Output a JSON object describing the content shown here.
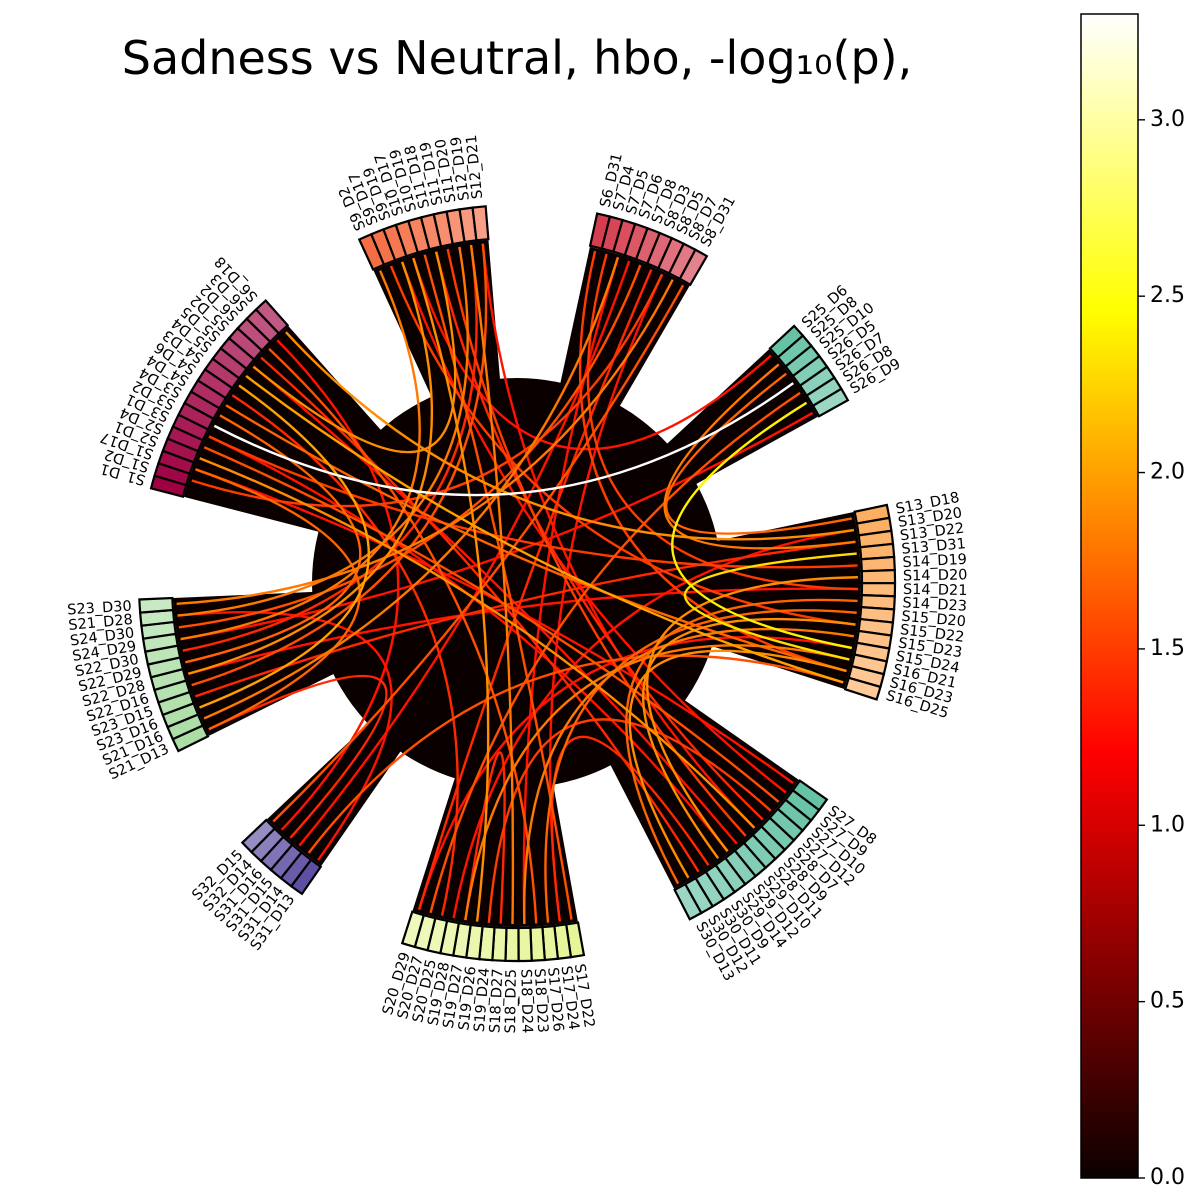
{
  "title": "Sadness vs Neutral, hbo, -log₁₀(p),",
  "colorbar": {
    "colormap": "hot",
    "range": [
      0.0,
      3.3
    ],
    "ticks": [
      "0.0",
      "0.5",
      "1.0",
      "1.5",
      "2.0",
      "2.5",
      "3.0"
    ],
    "tick_values": [
      0.0,
      0.5,
      1.0,
      1.5,
      2.0,
      2.5,
      3.0
    ]
  },
  "chart_data": {
    "type": "chord",
    "metric": "-log10(p)",
    "groups": [
      {
        "name": "group-1",
        "color": "#9e0142",
        "nodes": [
          "S1_D1",
          "S1_D2",
          "S1_D17",
          "S2_D1",
          "S2_D4",
          "S3_D1",
          "S3_D2",
          "S3_D4",
          "S4_D4",
          "S4_D6",
          "S4_D3",
          "S5_D4",
          "S5_D5",
          "S5_D2",
          "S6_D2",
          "S6_D3",
          "S6_D18"
        ]
      },
      {
        "name": "group-2",
        "color": "#f46d43",
        "nodes": [
          "S9_D2",
          "S9_D17",
          "S9_D19",
          "S10_D17",
          "S10_D19",
          "S11_D18",
          "S11_D19",
          "S11_D20",
          "S12_D19",
          "S12_D21"
        ]
      },
      {
        "name": "group-3",
        "color": "#d53e4f",
        "nodes": [
          "S6_D31",
          "S7_D4",
          "S7_D5",
          "S7_D6",
          "S7_D8",
          "S8_D3",
          "S8_D5",
          "S8_D7",
          "S8_D31"
        ]
      },
      {
        "name": "group-4",
        "color": "#66c2a5",
        "nodes": [
          "S25_D6",
          "S25_D8",
          "S25_D10",
          "S26_D5",
          "S26_D7",
          "S26_D8",
          "S26_D9"
        ]
      },
      {
        "name": "group-5",
        "color": "#fdae61",
        "nodes": [
          "S13_D18",
          "S13_D20",
          "S13_D22",
          "S13_D31",
          "S14_D19",
          "S14_D20",
          "S14_D21",
          "S14_D23",
          "S15_D20",
          "S15_D22",
          "S15_D23",
          "S15_D24",
          "S16_D21",
          "S16_D23",
          "S16_D25"
        ]
      },
      {
        "name": "group-6",
        "color": "#66c2a5",
        "nodes": [
          "S27_D8",
          "S27_D9",
          "S27_D10",
          "S27_D12",
          "S28_D7",
          "S28_D9",
          "S28_D11",
          "S29_D10",
          "S29_D12",
          "S29_D14",
          "S30_D9",
          "S30_D11",
          "S30_D12",
          "S30_D13"
        ]
      },
      {
        "name": "group-7",
        "color": "#e6f598",
        "nodes": [
          "S17_D22",
          "S17_D24",
          "S17_D26",
          "S18_D23",
          "S18_D24",
          "S18_D25",
          "S18_D27",
          "S19_D24",
          "S19_D26",
          "S19_D27",
          "S19_D28",
          "S20_D25",
          "S20_D27",
          "S20_D29"
        ]
      },
      {
        "name": "group-8",
        "color": "#5e4fa2",
        "nodes": [
          "S31_D13",
          "S31_D14",
          "S31_D15",
          "S31_D16",
          "S32_D14",
          "S32_D15"
        ]
      },
      {
        "name": "group-9",
        "color": "#abdda4",
        "nodes": [
          "S21_D13",
          "S21_D16",
          "S23_D16",
          "S23_D15",
          "S22_D16",
          "S22_D28",
          "S22_D29",
          "S22_D30",
          "S24_D29",
          "S24_D30",
          "S21_D28",
          "S23_D30"
        ]
      }
    ],
    "connections": [
      [
        "S3_D2",
        "S26_D5",
        3.3
      ],
      [
        "S26_D8",
        "S15_D24",
        2.4
      ],
      [
        "S13_D31",
        "S16_D21",
        2.3
      ],
      [
        "S5_D4",
        "S16_D25",
        2.0
      ],
      [
        "S4_D3",
        "S23_D16",
        2.0
      ],
      [
        "S5_D5",
        "S11_D18",
        1.9
      ],
      [
        "S9_D19",
        "S22_D28",
        1.9
      ],
      [
        "S10_D17",
        "S19_D26",
        1.9
      ],
      [
        "S6_D18",
        "S13_D20",
        1.9
      ],
      [
        "S2_D1",
        "S28_D9",
        1.9
      ],
      [
        "S14_D20",
        "S29_D12",
        1.9
      ],
      [
        "S15_D22",
        "S29_D14",
        1.9
      ],
      [
        "S16_D23",
        "S30_D12",
        1.9
      ],
      [
        "S16_D21",
        "S19_D27",
        1.8
      ],
      [
        "S15_D23",
        "S18_D24",
        1.8
      ],
      [
        "S7_D5",
        "S21_D16",
        1.8
      ],
      [
        "S8_D7",
        "S23_D30",
        1.8
      ],
      [
        "S25_D8",
        "S13_D22",
        1.8
      ],
      [
        "S24_D29",
        "S9_D2",
        1.8
      ],
      [
        "S21_D28",
        "S11_D20",
        1.8
      ],
      [
        "S12_D19",
        "S18_D25",
        1.8
      ],
      [
        "S1_D17",
        "S21_D13",
        1.7
      ],
      [
        "S3_D4",
        "S22_D29",
        1.7
      ],
      [
        "S4_D4",
        "S16_D23",
        1.7
      ],
      [
        "S14_D23",
        "S30_D13",
        1.7
      ],
      [
        "S15_D20",
        "S17_D26",
        1.7
      ],
      [
        "S13_D18",
        "S25_D10",
        1.7
      ],
      [
        "S16_D25",
        "S31_D14",
        1.6
      ],
      [
        "S26_D7",
        "S20_D27",
        1.6
      ],
      [
        "S8_D31",
        "S32_D15",
        1.6
      ],
      [
        "S6_D2",
        "S18_D23",
        1.6
      ],
      [
        "S7_D8",
        "S24_D30",
        1.6
      ],
      [
        "S10_D19",
        "S17_D22",
        1.6
      ],
      [
        "S12_D21",
        "S22_D16",
        1.6
      ],
      [
        "S2_D4",
        "S27_D10",
        1.6
      ],
      [
        "S3_D1",
        "S14_D19",
        1.5
      ],
      [
        "S1_D2",
        "S8_D5",
        1.5
      ],
      [
        "S11_D19",
        "S28_D11",
        1.5
      ],
      [
        "S9_D17",
        "S15_D22",
        1.5
      ],
      [
        "S6_D31",
        "S16_D23",
        1.5
      ],
      [
        "S7_D4",
        "S14_D21",
        1.5
      ],
      [
        "S19_D24",
        "S27_D12",
        1.5
      ],
      [
        "S18_D27",
        "S19_D27",
        1.4
      ],
      [
        "S30_D9",
        "S17_D24",
        1.4
      ],
      [
        "S5_D2",
        "S30_D11",
        1.4
      ],
      [
        "S4_D6",
        "S20_D25",
        1.4
      ],
      [
        "S21_D13",
        "S31_D16",
        1.4
      ],
      [
        "S23_D15",
        "S13_D22",
        1.4
      ],
      [
        "S22_D30",
        "S12_D19",
        1.4
      ],
      [
        "S20_D29",
        "S8_D3",
        1.4
      ],
      [
        "S28_D7",
        "S11_D18",
        1.4
      ],
      [
        "S29_D10",
        "S5_D5",
        1.3
      ],
      [
        "S27_D9",
        "S9_D19",
        1.3
      ],
      [
        "S25_D6",
        "S10_D17",
        1.3
      ],
      [
        "S26_D9",
        "S24_D29",
        1.3
      ],
      [
        "S31_D15",
        "S7_D6",
        1.3
      ],
      [
        "S32_D14",
        "S6_D3",
        1.3
      ],
      [
        "S19_D28",
        "S13_D20",
        1.3
      ],
      [
        "S18_D24",
        "S7_D5",
        1.3
      ],
      [
        "S17_D24",
        "S8_D5",
        1.3
      ],
      [
        "S31_D13",
        "S21_D28",
        1.3
      ],
      [
        "S15_D24",
        "S20_D29",
        1.3
      ],
      [
        "S14_D21",
        "S22_D28",
        1.3
      ],
      [
        "S27_D8",
        "S1_D17",
        1.3
      ],
      [
        "S29_D12",
        "S3_D1",
        1.3
      ],
      [
        "S28_D9",
        "S12_D21",
        1.3
      ]
    ]
  }
}
